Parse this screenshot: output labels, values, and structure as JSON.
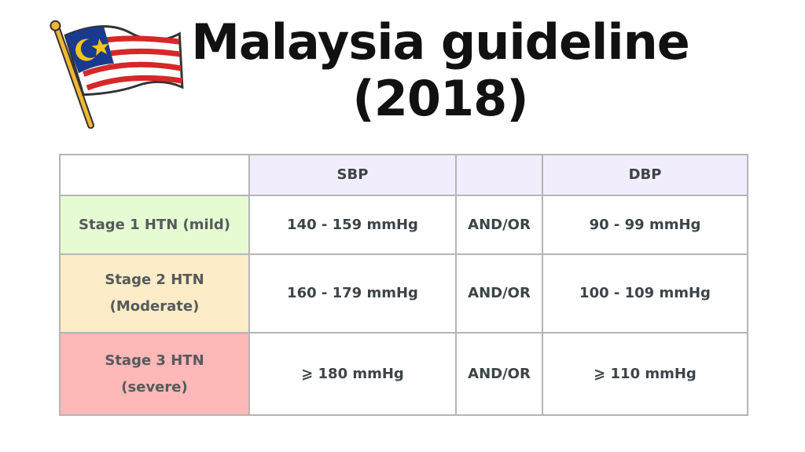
{
  "header": {
    "title": [
      "Malaysia guideline",
      "(2018)"
    ]
  },
  "table": {
    "columns": [
      "",
      "SBP",
      "",
      "DBP"
    ],
    "rows": [
      {
        "label": [
          "Stage 1 HTN (mild)"
        ],
        "sbp": "140 - 159 mmHg",
        "joiner": "AND/OR",
        "dbp": "90 - 99 mmHg"
      },
      {
        "label": [
          "Stage 2 HTN",
          "(Moderate)"
        ],
        "sbp": "160 - 179 mmHg",
        "joiner": "AND/OR",
        "dbp": "100 - 109 mmHg"
      },
      {
        "label": [
          "Stage 3 HTN",
          "(severe)"
        ],
        "sbp": "⩾ 180 mmHg",
        "joiner": "AND/OR",
        "dbp": "⩾ 110 mmHg"
      }
    ]
  }
}
